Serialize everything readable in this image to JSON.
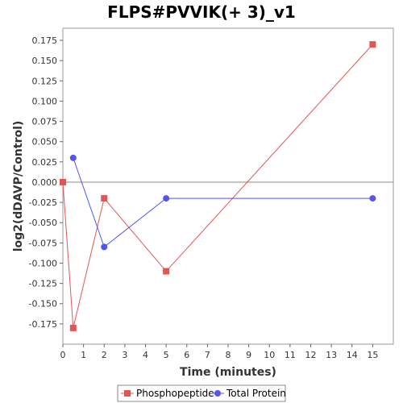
{
  "chart_data": {
    "type": "line",
    "title": "FLPS#PVVIK(+ 3)_v1",
    "xlabel": "Time (minutes)",
    "ylabel": "log2(dDAVP/Control)",
    "xlim": [
      0,
      16
    ],
    "ylim": [
      -0.2,
      0.19
    ],
    "x_ticks": [
      "0",
      "1",
      "2",
      "3",
      "4",
      "5",
      "6",
      "7",
      "8",
      "9",
      "10",
      "11",
      "12",
      "13",
      "14",
      "15"
    ],
    "y_ticks": [
      "0.175",
      "0.150",
      "0.125",
      "0.100",
      "0.075",
      "0.050",
      "0.025",
      "0.000",
      "-0.025",
      "-0.050",
      "-0.075",
      "-0.100",
      "-0.125",
      "-0.150",
      "-0.175"
    ],
    "zero_line": true,
    "grid": false,
    "legend_position": "bottom",
    "series": [
      {
        "name": "Phosphopeptide",
        "color": "#e05555",
        "marker": "square",
        "x": [
          0,
          0.5,
          2,
          5,
          15
        ],
        "y": [
          0.0,
          -0.18,
          -0.02,
          -0.11,
          0.17
        ]
      },
      {
        "name": "Total Protein",
        "color": "#5555ee",
        "marker": "circle",
        "x": [
          0.5,
          2,
          5,
          15
        ],
        "y": [
          0.03,
          -0.08,
          -0.02,
          -0.02
        ]
      }
    ]
  }
}
